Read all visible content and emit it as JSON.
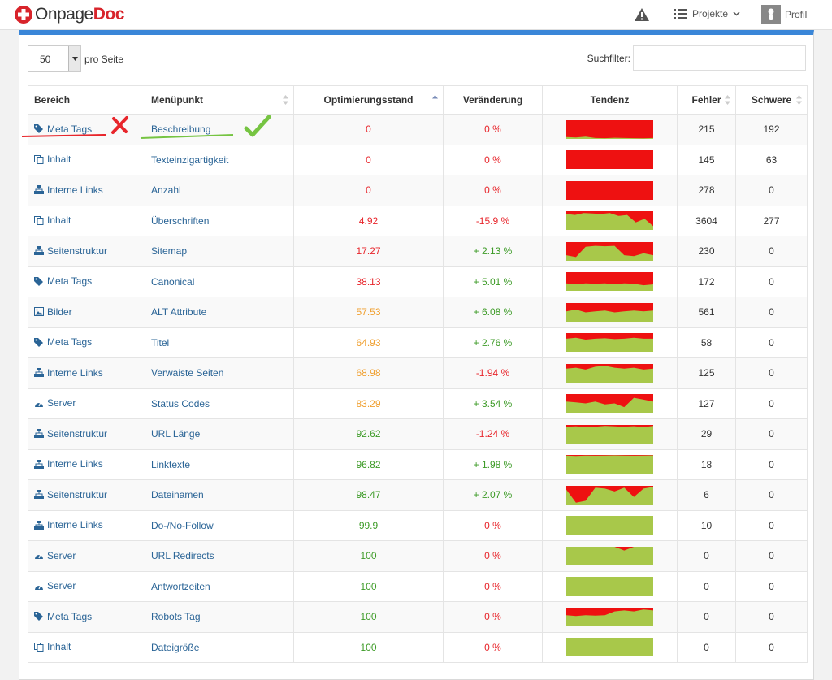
{
  "header": {
    "logo_a": "Onpage",
    "logo_b": "Doc",
    "projects_label": "Projekte",
    "profile_label": "Profil"
  },
  "controls": {
    "per_page_value": "50",
    "per_page_label": "pro Seite",
    "search_label": "Suchfilter:",
    "search_value": ""
  },
  "table": {
    "columns": [
      "Bereich",
      "Menüpunkt",
      "Optimierungsstand",
      "Veränderung",
      "Tendenz",
      "Fehler",
      "Schwere"
    ],
    "rows": [
      {
        "area": "Meta Tags",
        "icon": "tag-icon",
        "item": "Beschreibung",
        "score": "0",
        "score_color": "red",
        "change": "0 %",
        "change_color": "red",
        "trend": [
          0.1,
          0.08,
          0.12,
          0.05,
          0.04,
          0.06,
          0.05,
          0.04,
          0.03,
          0.05
        ],
        "errors": "215",
        "severity": "192"
      },
      {
        "area": "Inhalt",
        "icon": "copy-icon",
        "item": "Texteinzigartigkeit",
        "score": "0",
        "score_color": "red",
        "change": "0 %",
        "change_color": "red",
        "trend": [
          0,
          0,
          0,
          0,
          0,
          0,
          0,
          0,
          0,
          0
        ],
        "errors": "145",
        "severity": "63"
      },
      {
        "area": "Interne Links",
        "icon": "sitemap-icon",
        "item": "Anzahl",
        "score": "0",
        "score_color": "red",
        "change": "0 %",
        "change_color": "red",
        "trend": [
          0,
          0,
          0,
          0,
          0,
          0,
          0,
          0,
          0,
          0
        ],
        "errors": "278",
        "severity": "0"
      },
      {
        "area": "Inhalt",
        "icon": "copy-icon",
        "item": "Überschriften",
        "score": "4.92",
        "score_color": "red",
        "change": "-15.9 %",
        "change_color": "red",
        "trend": [
          0.85,
          0.8,
          0.9,
          0.88,
          0.85,
          0.9,
          0.75,
          0.8,
          0.4,
          0.6,
          0.2
        ],
        "errors": "3604",
        "severity": "277"
      },
      {
        "area": "Seitenstruktur",
        "icon": "sitemap-icon",
        "item": "Sitemap",
        "score": "17.27",
        "score_color": "red",
        "change": "+ 2.13 %",
        "change_color": "green",
        "trend": [
          0.3,
          0.2,
          0.75,
          0.8,
          0.78,
          0.8,
          0.3,
          0.25,
          0.4,
          0.3
        ],
        "errors": "230",
        "severity": "0"
      },
      {
        "area": "Meta Tags",
        "icon": "tag-icon",
        "item": "Canonical",
        "score": "38.13",
        "score_color": "red",
        "change": "+ 5.01 %",
        "change_color": "green",
        "trend": [
          0.4,
          0.35,
          0.4,
          0.38,
          0.4,
          0.35,
          0.4,
          0.38,
          0.3,
          0.35
        ],
        "errors": "172",
        "severity": "0"
      },
      {
        "area": "Bilder",
        "icon": "image-icon",
        "item": "ALT Attribute",
        "score": "57.53",
        "score_color": "orange",
        "change": "+ 6.08 %",
        "change_color": "green",
        "trend": [
          0.55,
          0.65,
          0.5,
          0.55,
          0.6,
          0.5,
          0.55,
          0.6,
          0.55,
          0.6
        ],
        "errors": "561",
        "severity": "0"
      },
      {
        "area": "Meta Tags",
        "icon": "tag-icon",
        "item": "Titel",
        "score": "64.93",
        "score_color": "orange",
        "change": "+ 2.76 %",
        "change_color": "green",
        "trend": [
          0.7,
          0.75,
          0.65,
          0.7,
          0.72,
          0.68,
          0.7,
          0.75,
          0.7,
          0.7
        ],
        "errors": "58",
        "severity": "0"
      },
      {
        "area": "Interne Links",
        "icon": "sitemap-icon",
        "item": "Verwaiste Seiten",
        "score": "68.98",
        "score_color": "orange",
        "change": "-1.94 %",
        "change_color": "red",
        "trend": [
          0.75,
          0.8,
          0.7,
          0.85,
          0.9,
          0.8,
          0.75,
          0.8,
          0.7,
          0.75
        ],
        "errors": "125",
        "severity": "0"
      },
      {
        "area": "Server",
        "icon": "dashboard-icon",
        "item": "Status Codes",
        "score": "83.29",
        "score_color": "orange",
        "change": "+ 3.54 %",
        "change_color": "green",
        "trend": [
          0.6,
          0.55,
          0.5,
          0.6,
          0.45,
          0.5,
          0.3,
          0.8,
          0.7,
          0.6
        ],
        "errors": "127",
        "severity": "0"
      },
      {
        "area": "Seitenstruktur",
        "icon": "sitemap-icon",
        "item": "URL Länge",
        "score": "92.62",
        "score_color": "green",
        "change": "-1.24 %",
        "change_color": "red",
        "trend": [
          0.9,
          0.92,
          0.88,
          0.9,
          0.95,
          0.92,
          0.9,
          0.93,
          0.88,
          0.95
        ],
        "errors": "29",
        "severity": "0"
      },
      {
        "area": "Interne Links",
        "icon": "sitemap-icon",
        "item": "Linktexte",
        "score": "96.82",
        "score_color": "green",
        "change": "+ 1.98 %",
        "change_color": "green",
        "trend": [
          0.97,
          0.95,
          0.97,
          0.96,
          0.97,
          0.98,
          0.97,
          0.96,
          0.97,
          0.98
        ],
        "errors": "18",
        "severity": "0"
      },
      {
        "area": "Seitenstruktur",
        "icon": "sitemap-icon",
        "item": "Dateinamen",
        "score": "98.47",
        "score_color": "green",
        "change": "+ 2.07 %",
        "change_color": "green",
        "trend": [
          0.8,
          0.1,
          0.2,
          0.9,
          0.85,
          0.7,
          0.9,
          0.4,
          0.85,
          0.95
        ],
        "errors": "6",
        "severity": "0"
      },
      {
        "area": "Interne Links",
        "icon": "sitemap-icon",
        "item": "Do-/No-Follow",
        "score": "99.9",
        "score_color": "green",
        "change": "0 %",
        "change_color": "red",
        "trend": [
          1,
          1,
          1,
          1,
          1,
          1,
          1,
          1,
          1,
          1
        ],
        "errors": "10",
        "severity": "0"
      },
      {
        "area": "Server",
        "icon": "dashboard-icon",
        "item": "URL Redirects",
        "score": "100",
        "score_color": "green",
        "change": "0 %",
        "change_color": "red",
        "trend": [
          1,
          1,
          1,
          1,
          1,
          1,
          0.8,
          1,
          1,
          1
        ],
        "errors": "0",
        "severity": "0"
      },
      {
        "area": "Server",
        "icon": "dashboard-icon",
        "item": "Antwortzeiten",
        "score": "100",
        "score_color": "green",
        "change": "0 %",
        "change_color": "red",
        "trend": [
          1,
          1,
          1,
          1,
          1,
          1,
          1,
          1,
          1,
          1
        ],
        "errors": "0",
        "severity": "0"
      },
      {
        "area": "Meta Tags",
        "icon": "tag-icon",
        "item": "Robots Tag",
        "score": "100",
        "score_color": "green",
        "change": "0 %",
        "change_color": "red",
        "trend": [
          0.6,
          0.55,
          0.6,
          0.58,
          0.6,
          0.8,
          0.85,
          0.8,
          0.9,
          0.85
        ],
        "errors": "0",
        "severity": "0"
      },
      {
        "area": "Inhalt",
        "icon": "copy-icon",
        "item": "Dateigröße",
        "score": "100",
        "score_color": "green",
        "change": "0 %",
        "change_color": "red",
        "trend": [
          1,
          1,
          1,
          1,
          1,
          1,
          1,
          1,
          1,
          1
        ],
        "errors": "0",
        "severity": "0"
      }
    ]
  }
}
